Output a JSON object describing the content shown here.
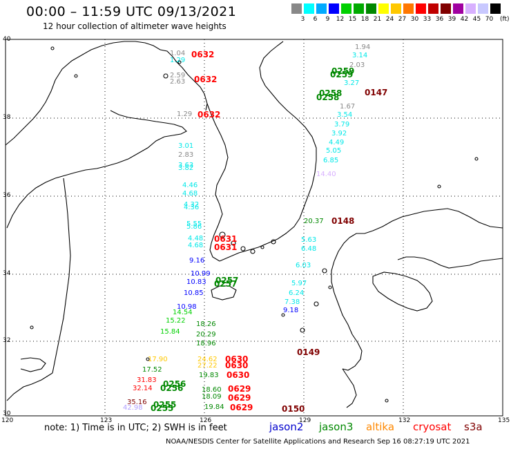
{
  "header": {
    "title": "00:00 – 11:59 UTC 09/13/2021",
    "subtitle": "12 hour collection of altimeter wave heights"
  },
  "scale": {
    "colors": [
      "#888888",
      "#00ffff",
      "#00aaff",
      "#0000ff",
      "#00d000",
      "#00aa00",
      "#008800",
      "#ffff00",
      "#ffc800",
      "#ff7700",
      "#ff0000",
      "#c00000",
      "#800000",
      "#a000a0",
      "#d8b0ff",
      "#c8c8ff",
      "#000000"
    ],
    "labels": [
      "3",
      "6",
      "9",
      "12",
      "15",
      "18",
      "21",
      "24",
      "27",
      "30",
      "33",
      "36",
      "39",
      "42",
      "45",
      "70"
    ],
    "unit": "(ft)"
  },
  "axes": {
    "lon_labels": [
      "120",
      "123",
      "126",
      "129",
      "132",
      "135"
    ],
    "lat_labels": [
      "40",
      "38",
      "36",
      "34",
      "32",
      "30"
    ]
  },
  "colors": {
    "cryosat": "#ff0000",
    "s3a": "#800000",
    "jason3": "#008800",
    "gray": "#888888",
    "cyan": "#00e8e8",
    "lavender": "#b0a0ff"
  },
  "wave_labels": [
    {
      "v": "1.04",
      "c": "#888888"
    },
    {
      "v": "1.29",
      "c": "#00e8e8"
    },
    {
      "v": "2.59",
      "c": "#888888"
    },
    {
      "v": "2.63",
      "c": "#888888"
    },
    {
      "v": "1.29",
      "c": "#888888"
    },
    {
      "v": "3.01",
      "c": "#00e8e8"
    },
    {
      "v": "2.83",
      "c": "#888888"
    },
    {
      "v": "3.63",
      "c": "#00e8e8"
    },
    {
      "v": "3.82",
      "c": "#00e8e8"
    },
    {
      "v": "4.46",
      "c": "#00e8e8"
    },
    {
      "v": "4.68",
      "c": "#00e8e8"
    },
    {
      "v": "4.32",
      "c": "#00e8e8"
    },
    {
      "v": "4.36",
      "c": "#00e8e8"
    },
    {
      "v": "5.55",
      "c": "#00e8e8"
    },
    {
      "v": "5.86",
      "c": "#00e8e8"
    },
    {
      "v": "4.48",
      "c": "#00e8e8"
    },
    {
      "v": "4.68",
      "c": "#00e8e8"
    },
    {
      "v": "9.16",
      "c": "#0000ff"
    },
    {
      "v": "10.99",
      "c": "#0000ff"
    },
    {
      "v": "10.83",
      "c": "#0000ff"
    },
    {
      "v": "10.85",
      "c": "#0000ff"
    },
    {
      "v": "10.98",
      "c": "#0000ff"
    },
    {
      "v": "14.54",
      "c": "#00d000"
    },
    {
      "v": "15.22",
      "c": "#00d000"
    },
    {
      "v": "15.84",
      "c": "#00d000"
    },
    {
      "v": "18.26",
      "c": "#008800"
    },
    {
      "v": "20.29",
      "c": "#008800"
    },
    {
      "v": "18.96",
      "c": "#008800"
    },
    {
      "v": "17.90",
      "c": "#ffc800"
    },
    {
      "v": "17.52",
      "c": "#008800"
    },
    {
      "v": "31.83",
      "c": "#ff0000"
    },
    {
      "v": "32.14",
      "c": "#ff0000"
    },
    {
      "v": "35.16",
      "c": "#800000"
    },
    {
      "v": "42.98",
      "c": "#b0a0ff"
    },
    {
      "v": "24.62",
      "c": "#ffc800"
    },
    {
      "v": "27.22",
      "c": "#ffc800"
    },
    {
      "v": "19.83",
      "c": "#008800"
    },
    {
      "v": "18.60",
      "c": "#008800"
    },
    {
      "v": "18.09",
      "c": "#008800"
    },
    {
      "v": "19.84",
      "c": "#008800"
    },
    {
      "v": "1.94",
      "c": "#888888"
    },
    {
      "v": "3.14",
      "c": "#00e8e8"
    },
    {
      "v": "2.03",
      "c": "#888888"
    },
    {
      "v": "3.27",
      "c": "#00e8e8"
    },
    {
      "v": "1.67",
      "c": "#888888"
    },
    {
      "v": "3.54",
      "c": "#00e8e8"
    },
    {
      "v": "3.79",
      "c": "#00e8e8"
    },
    {
      "v": "3.92",
      "c": "#00e8e8"
    },
    {
      "v": "4.49",
      "c": "#00e8e8"
    },
    {
      "v": "5.05",
      "c": "#00e8e8"
    },
    {
      "v": "6.85",
      "c": "#00e8e8"
    },
    {
      "v": "14.40",
      "c": "#d8b0ff"
    },
    {
      "v": "20.37",
      "c": "#008800"
    },
    {
      "v": "5.63",
      "c": "#00e8e8"
    },
    {
      "v": "6.48",
      "c": "#00e8e8"
    },
    {
      "v": "6.03",
      "c": "#00e8e8"
    },
    {
      "v": "5.97",
      "c": "#00e8e8"
    },
    {
      "v": "6.24",
      "c": "#00e8e8"
    },
    {
      "v": "7.38",
      "c": "#00e8e8"
    },
    {
      "v": "9.18",
      "c": "#0000ff"
    }
  ],
  "time_labels": [
    {
      "v": "0632",
      "c": "#ff0000"
    },
    {
      "v": "0632",
      "c": "#ff0000"
    },
    {
      "v": "0632",
      "c": "#ff0000"
    },
    {
      "v": "0631",
      "c": "#ff0000"
    },
    {
      "v": "0631",
      "c": "#ff0000"
    },
    {
      "v": "0630",
      "c": "#ff0000"
    },
    {
      "v": "0630",
      "c": "#ff0000"
    },
    {
      "v": "0630",
      "c": "#ff0000"
    },
    {
      "v": "0629",
      "c": "#ff0000"
    },
    {
      "v": "0629",
      "c": "#ff0000"
    },
    {
      "v": "0629",
      "c": "#ff0000"
    },
    {
      "v": "0259",
      "c": "#008800"
    },
    {
      "v": "0259",
      "c": "#008800"
    },
    {
      "v": "0258",
      "c": "#008800"
    },
    {
      "v": "0258",
      "c": "#008800"
    },
    {
      "v": "0257",
      "c": "#008800"
    },
    {
      "v": "0257",
      "c": "#008800"
    },
    {
      "v": "0256",
      "c": "#008800"
    },
    {
      "v": "0256",
      "c": "#008800"
    },
    {
      "v": "0255",
      "c": "#008800"
    },
    {
      "v": "0255",
      "c": "#008800"
    },
    {
      "v": "0147",
      "c": "#800000"
    },
    {
      "v": "0148",
      "c": "#800000"
    },
    {
      "v": "0149",
      "c": "#800000"
    },
    {
      "v": "0150",
      "c": "#800000"
    }
  ],
  "note": "note: 1) Time is in UTC; 2) SWH is in feet",
  "satellites": [
    {
      "name": "jason2",
      "color": "#0000cc"
    },
    {
      "name": "jason3",
      "color": "#008800"
    },
    {
      "name": "altika",
      "color": "#ff8800"
    },
    {
      "name": "cryosat",
      "color": "#ff0000"
    },
    {
      "name": "s3a",
      "color": "#800000"
    }
  ],
  "footer": "NOAA/NESDIS Center for Satellite Applications and Research    Sep 16 08:27:19 UTC 2021"
}
